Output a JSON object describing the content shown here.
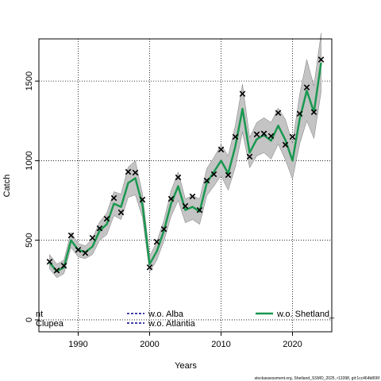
{
  "chart_data": {
    "type": "line",
    "title": "",
    "xlabel": "Years",
    "ylabel": "Catch",
    "xlim": [
      1984.5,
      2025.5
    ],
    "ylim": [
      -75,
      1765
    ],
    "x_ticks": [
      1990,
      2000,
      2010,
      2020
    ],
    "y_ticks": [
      0,
      500,
      1000,
      1500
    ],
    "grid": true,
    "legend_placement": "bottom",
    "colors": {
      "band": "#c4c4c4",
      "band_edge": "#7a7a7a",
      "fit": "#1a9850",
      "observed": "#000000",
      "grid": "#000000"
    },
    "observed": {
      "marker": "cross",
      "x": [
        1986,
        1987,
        1988,
        1989,
        1990,
        1991,
        1992,
        1993,
        1994,
        1995,
        1996,
        1997,
        1998,
        1999,
        2000,
        2001,
        2002,
        2003,
        2004,
        2005,
        2006,
        2007,
        2008,
        2009,
        2010,
        2011,
        2012,
        2013,
        2014,
        2015,
        2016,
        2017,
        2018,
        2019,
        2020,
        2021,
        2022,
        2023,
        2024
      ],
      "y": [
        365,
        310,
        340,
        530,
        440,
        420,
        515,
        575,
        635,
        765,
        675,
        930,
        925,
        755,
        330,
        490,
        570,
        760,
        895,
        715,
        775,
        690,
        875,
        915,
        1070,
        910,
        1150,
        1420,
        1025,
        1165,
        1170,
        1155,
        1300,
        1100,
        1150,
        1295,
        1460,
        1305,
        1635
      ]
    },
    "fit": {
      "x": [
        1986,
        1987,
        1988,
        1989,
        1990,
        1991,
        1992,
        1993,
        1994,
        1995,
        1996,
        1997,
        1998,
        1999,
        2000,
        2001,
        2002,
        2003,
        2004,
        2005,
        2006,
        2007,
        2008,
        2009,
        2010,
        2011,
        2012,
        2013,
        2014,
        2015,
        2016,
        2017,
        2018,
        2019,
        2020,
        2021,
        2022,
        2023,
        2024
      ],
      "y": [
        360,
        305,
        330,
        500,
        440,
        425,
        460,
        560,
        600,
        730,
        710,
        860,
        890,
        720,
        350,
        430,
        560,
        730,
        840,
        690,
        710,
        680,
        860,
        930,
        1000,
        920,
        1090,
        1325,
        1050,
        1135,
        1160,
        1125,
        1220,
        1130,
        1000,
        1260,
        1440,
        1305,
        1615
      ],
      "upper": [
        410,
        350,
        375,
        550,
        480,
        465,
        510,
        615,
        670,
        805,
        790,
        960,
        1000,
        790,
        400,
        490,
        625,
        810,
        930,
        760,
        780,
        760,
        950,
        1020,
        1100,
        1030,
        1220,
        1480,
        1145,
        1240,
        1270,
        1240,
        1330,
        1260,
        1110,
        1415,
        1635,
        1470,
        1800
      ],
      "lower": [
        320,
        265,
        290,
        455,
        395,
        385,
        410,
        500,
        535,
        655,
        630,
        770,
        785,
        645,
        300,
        375,
        495,
        650,
        750,
        610,
        630,
        600,
        780,
        840,
        905,
        815,
        960,
        1180,
        955,
        1030,
        1050,
        1010,
        1105,
        1005,
        885,
        1105,
        1250,
        1140,
        1430
      ]
    },
    "legend": [
      {
        "label": "nt",
        "style": "partial"
      },
      {
        "label": "w.o. Alba",
        "style": "dashed"
      },
      {
        "label": "w.o. Shetland_",
        "style": "solid"
      },
      {
        "label": "Clupea",
        "style": "partial"
      },
      {
        "label": "w.o. Atlantia",
        "style": "dashed"
      }
    ],
    "footer": "stockassessment.org, Shetland_SSMO_2025, r13398, git:1cc464b806f"
  }
}
